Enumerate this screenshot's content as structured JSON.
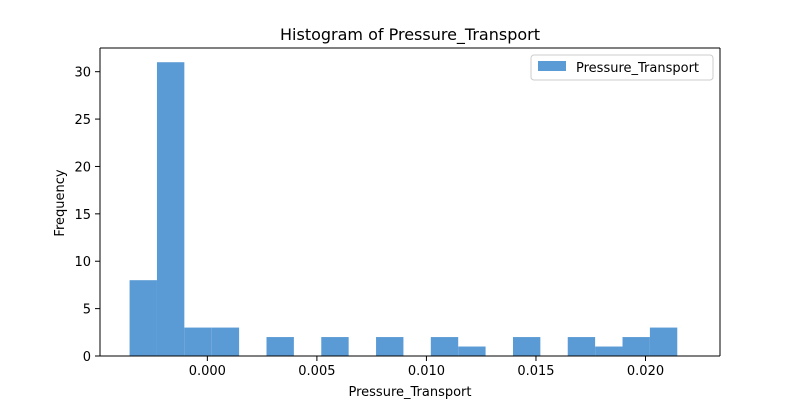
{
  "chart_data": {
    "type": "bar",
    "title": "Histogram of Pressure_Transport",
    "xlabel": "Pressure_Transport",
    "ylabel": "Frequency",
    "xlim": [
      -0.0049,
      0.0234
    ],
    "ylim": [
      0,
      32.5
    ],
    "xticks": [
      0.0,
      0.005,
      0.01,
      0.015,
      0.02
    ],
    "xtick_labels": [
      "0.000",
      "0.005",
      "0.010",
      "0.015",
      "0.020"
    ],
    "yticks": [
      0,
      5,
      10,
      15,
      20,
      25,
      30
    ],
    "ytick_labels": [
      "0",
      "5",
      "10",
      "15",
      "20",
      "25",
      "30"
    ],
    "grid": false,
    "legend_position": "top-right",
    "bar_color": "#5b9bd5",
    "series": [
      {
        "name": "Pressure_Transport",
        "bins": [
          {
            "x0": -0.00355,
            "x1": -0.0023,
            "count": 8
          },
          {
            "x0": -0.0023,
            "x1": -0.00105,
            "count": 31
          },
          {
            "x0": -0.00105,
            "x1": 0.0002,
            "count": 3
          },
          {
            "x0": 0.0002,
            "x1": 0.00145,
            "count": 3
          },
          {
            "x0": 0.00145,
            "x1": 0.0027,
            "count": 0
          },
          {
            "x0": 0.0027,
            "x1": 0.00395,
            "count": 2
          },
          {
            "x0": 0.00395,
            "x1": 0.0052,
            "count": 0
          },
          {
            "x0": 0.0052,
            "x1": 0.00645,
            "count": 2
          },
          {
            "x0": 0.00645,
            "x1": 0.0077,
            "count": 0
          },
          {
            "x0": 0.0077,
            "x1": 0.00895,
            "count": 2
          },
          {
            "x0": 0.00895,
            "x1": 0.0102,
            "count": 0
          },
          {
            "x0": 0.0102,
            "x1": 0.01145,
            "count": 2
          },
          {
            "x0": 0.01145,
            "x1": 0.0127,
            "count": 1
          },
          {
            "x0": 0.0127,
            "x1": 0.01395,
            "count": 0
          },
          {
            "x0": 0.01395,
            "x1": 0.0152,
            "count": 2
          },
          {
            "x0": 0.0152,
            "x1": 0.01645,
            "count": 0
          },
          {
            "x0": 0.01645,
            "x1": 0.0177,
            "count": 2
          },
          {
            "x0": 0.0177,
            "x1": 0.01895,
            "count": 1
          },
          {
            "x0": 0.01895,
            "x1": 0.0202,
            "count": 2
          },
          {
            "x0": 0.0202,
            "x1": 0.02145,
            "count": 3
          }
        ]
      }
    ]
  }
}
